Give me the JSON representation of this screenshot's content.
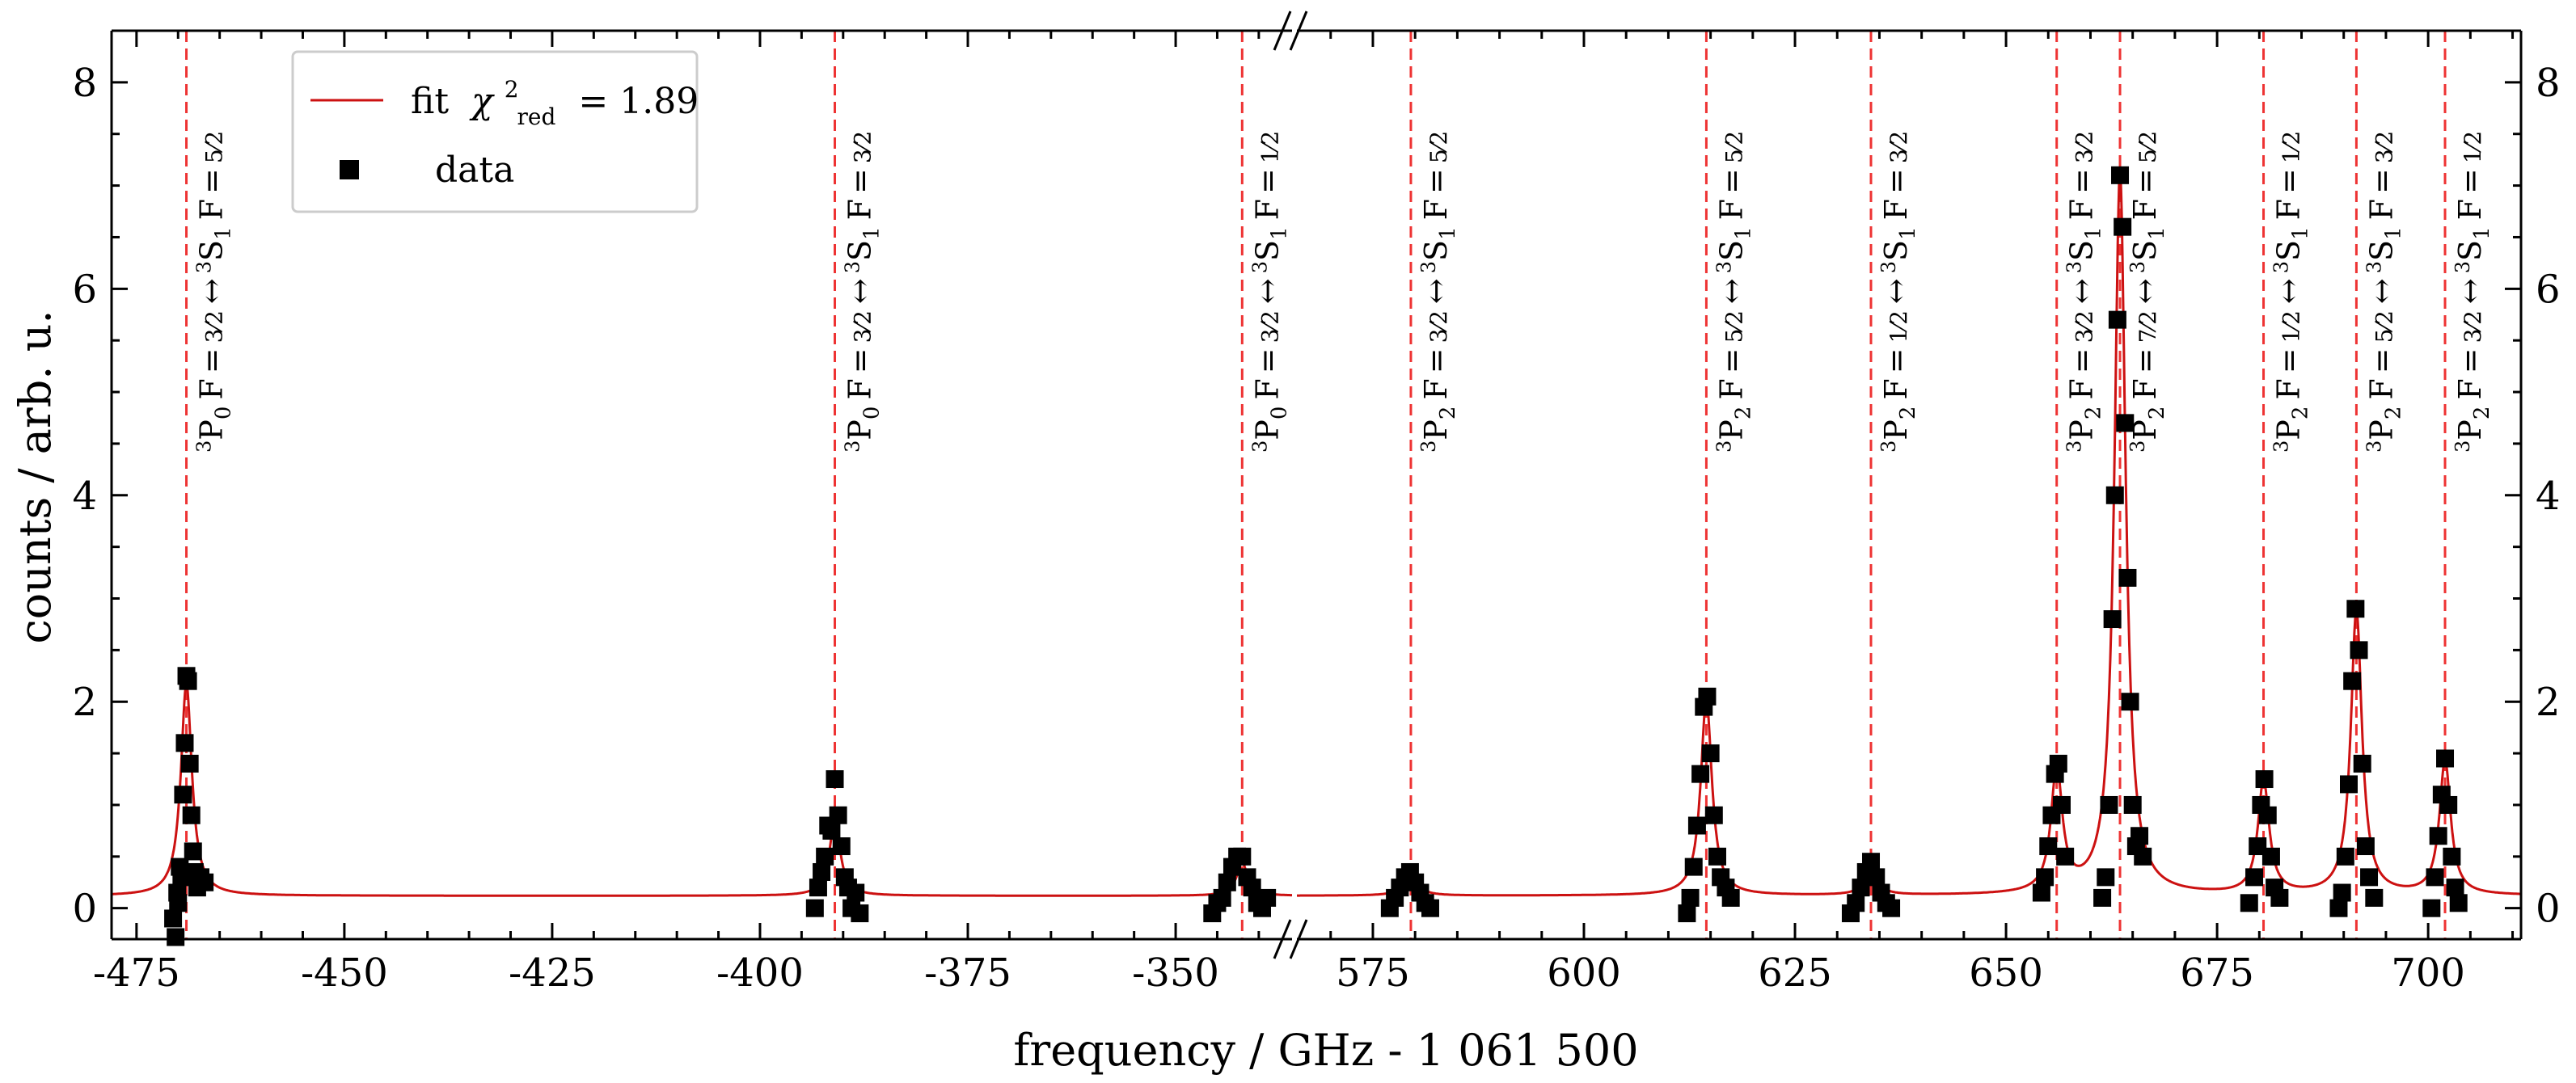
{
  "chart_data": {
    "type": "scatter",
    "xlabel": "frequency / GHz - 1 061 500",
    "ylabel": "counts / arb. u.",
    "ylim": [
      -0.3,
      8.5
    ],
    "yticks": [
      "0",
      "2",
      "4",
      "6",
      "8"
    ],
    "broken_axis": true,
    "panels": [
      {
        "xlim": [
          -478,
          -336
        ],
        "xticks": [
          "-475",
          "-450",
          "-425",
          "-400",
          "-375",
          "-350"
        ]
      },
      {
        "xlim": [
          566,
          711
        ],
        "xticks": [
          "575",
          "600",
          "625",
          "650",
          "675",
          "700"
        ]
      }
    ],
    "legend": {
      "position": "top-left",
      "fit_prefix": "fit",
      "fit_chi_symbol": "χ",
      "fit_chi_sup": "2",
      "fit_chi_sub": "red",
      "fit_value": "= 1.89",
      "data_label": "data"
    },
    "fit_color": "#cc1111",
    "marker_color": "#000000",
    "line_color": "#ee3333",
    "baseline": 0.12,
    "transitions": [
      {
        "panel": 0,
        "x": -469.0,
        "lower": "3P0",
        "F1": "3/2",
        "F2": "5/2",
        "amp": 2.05
      },
      {
        "panel": 0,
        "x": -391.0,
        "lower": "3P0",
        "F1": "3/2",
        "F2": "3/2",
        "amp": 0.72
      },
      {
        "panel": 0,
        "x": -342.0,
        "lower": "3P0",
        "F1": "3/2",
        "F2": "1/2",
        "amp": 0.32
      },
      {
        "panel": 1,
        "x": 579.5,
        "lower": "3P2",
        "F1": "3/2",
        "F2": "5/2",
        "amp": 0.28
      },
      {
        "panel": 1,
        "x": 614.5,
        "lower": "3P2",
        "F1": "5/2",
        "F2": "5/2",
        "amp": 1.9
      },
      {
        "panel": 1,
        "x": 634.0,
        "lower": "3P2",
        "F1": "1/2",
        "F2": "3/2",
        "amp": 0.3
      },
      {
        "panel": 1,
        "x": 656.0,
        "lower": "3P2",
        "F1": "3/2",
        "F2": "3/2",
        "amp": 1.2
      },
      {
        "panel": 1,
        "x": 663.5,
        "lower": "3P2",
        "F1": "7/2",
        "F2": "5/2",
        "amp": 7.0
      },
      {
        "panel": 1,
        "x": 680.5,
        "lower": "3P2",
        "F1": "1/2",
        "F2": "1/2",
        "amp": 1.1
      },
      {
        "panel": 1,
        "x": 691.5,
        "lower": "3P2",
        "F1": "5/2",
        "F2": "3/2",
        "amp": 2.75
      },
      {
        "panel": 1,
        "x": 702.0,
        "lower": "3P2",
        "F1": "3/2",
        "F2": "1/2",
        "amp": 1.3
      }
    ],
    "label_text": {
      "F": "F",
      "eq": "=",
      "arrow": "↔",
      "upper_state": "3S",
      "upper_sub": "1"
    },
    "data_points": [
      [
        -470.3,
        -0.28
      ],
      [
        -470.0,
        0.05
      ],
      [
        -469.8,
        0.4
      ],
      [
        -469.6,
        0.3
      ],
      [
        -469.4,
        1.1
      ],
      [
        -469.2,
        1.6
      ],
      [
        -469.0,
        2.25
      ],
      [
        -468.8,
        2.2
      ],
      [
        -468.6,
        1.4
      ],
      [
        -468.4,
        0.9
      ],
      [
        -468.2,
        0.55
      ],
      [
        -468.0,
        0.35
      ],
      [
        -467.7,
        0.2
      ],
      [
        -467.3,
        0.3
      ],
      [
        -466.8,
        0.25
      ],
      [
        -470.6,
        -0.1
      ],
      [
        -470.1,
        0.15
      ],
      [
        -393.0,
        0.2
      ],
      [
        -392.6,
        0.35
      ],
      [
        -392.2,
        0.5
      ],
      [
        -391.8,
        0.8
      ],
      [
        -391.4,
        0.75
      ],
      [
        -391.0,
        1.25
      ],
      [
        -390.6,
        0.9
      ],
      [
        -390.2,
        0.6
      ],
      [
        -389.8,
        0.3
      ],
      [
        -389.4,
        0.2
      ],
      [
        -389.0,
        0.0
      ],
      [
        -388.5,
        0.15
      ],
      [
        -388.0,
        -0.05
      ],
      [
        -393.4,
        0.0
      ],
      [
        -345.0,
        0.05
      ],
      [
        -344.4,
        0.1
      ],
      [
        -343.8,
        0.25
      ],
      [
        -343.2,
        0.4
      ],
      [
        -342.6,
        0.5
      ],
      [
        -342.0,
        0.5
      ],
      [
        -341.4,
        0.3
      ],
      [
        -340.8,
        0.2
      ],
      [
        -340.2,
        0.05
      ],
      [
        -339.6,
        0.0
      ],
      [
        -345.6,
        -0.05
      ],
      [
        -339.0,
        0.1
      ],
      [
        577.0,
        0.0
      ],
      [
        577.6,
        0.1
      ],
      [
        578.2,
        0.2
      ],
      [
        578.8,
        0.3
      ],
      [
        579.4,
        0.35
      ],
      [
        580.0,
        0.25
      ],
      [
        580.6,
        0.15
      ],
      [
        581.2,
        0.05
      ],
      [
        581.8,
        0.0
      ],
      [
        612.6,
        0.1
      ],
      [
        613.0,
        0.4
      ],
      [
        613.4,
        0.8
      ],
      [
        613.8,
        1.3
      ],
      [
        614.2,
        1.95
      ],
      [
        614.6,
        2.05
      ],
      [
        615.0,
        1.5
      ],
      [
        615.4,
        0.9
      ],
      [
        615.8,
        0.5
      ],
      [
        616.2,
        0.3
      ],
      [
        616.8,
        0.2
      ],
      [
        617.4,
        0.1
      ],
      [
        612.2,
        -0.05
      ],
      [
        632.2,
        0.05
      ],
      [
        632.8,
        0.2
      ],
      [
        633.4,
        0.35
      ],
      [
        634.0,
        0.45
      ],
      [
        634.6,
        0.3
      ],
      [
        635.2,
        0.15
      ],
      [
        635.8,
        0.05
      ],
      [
        636.4,
        0.0
      ],
      [
        631.6,
        -0.05
      ],
      [
        654.6,
        0.3
      ],
      [
        655.0,
        0.6
      ],
      [
        655.4,
        0.9
      ],
      [
        655.8,
        1.3
      ],
      [
        656.2,
        1.4
      ],
      [
        656.6,
        1.0
      ],
      [
        657.0,
        0.5
      ],
      [
        654.2,
        0.15
      ],
      [
        661.8,
        0.3
      ],
      [
        662.2,
        1.0
      ],
      [
        662.6,
        2.8
      ],
      [
        662.9,
        4.0
      ],
      [
        663.2,
        5.7
      ],
      [
        663.5,
        7.1
      ],
      [
        663.8,
        6.6
      ],
      [
        664.1,
        4.7
      ],
      [
        664.4,
        3.2
      ],
      [
        664.7,
        2.0
      ],
      [
        665.0,
        1.0
      ],
      [
        665.4,
        0.6
      ],
      [
        665.8,
        0.7
      ],
      [
        666.2,
        0.5
      ],
      [
        661.4,
        0.1
      ],
      [
        678.8,
        0.05
      ],
      [
        679.4,
        0.3
      ],
      [
        679.8,
        0.6
      ],
      [
        680.2,
        1.0
      ],
      [
        680.6,
        1.25
      ],
      [
        681.0,
        0.9
      ],
      [
        681.4,
        0.5
      ],
      [
        681.8,
        0.2
      ],
      [
        682.4,
        0.1
      ],
      [
        689.8,
        0.15
      ],
      [
        690.2,
        0.5
      ],
      [
        690.6,
        1.2
      ],
      [
        691.0,
        2.2
      ],
      [
        691.4,
        2.9
      ],
      [
        691.8,
        2.5
      ],
      [
        692.2,
        1.4
      ],
      [
        692.6,
        0.6
      ],
      [
        693.0,
        0.3
      ],
      [
        693.6,
        0.1
      ],
      [
        689.4,
        0.0
      ],
      [
        700.4,
        0.0
      ],
      [
        700.8,
        0.3
      ],
      [
        701.2,
        0.7
      ],
      [
        701.6,
        1.1
      ],
      [
        702.0,
        1.45
      ],
      [
        702.4,
        1.0
      ],
      [
        702.8,
        0.5
      ],
      [
        703.2,
        0.2
      ],
      [
        703.6,
        0.05
      ]
    ]
  }
}
